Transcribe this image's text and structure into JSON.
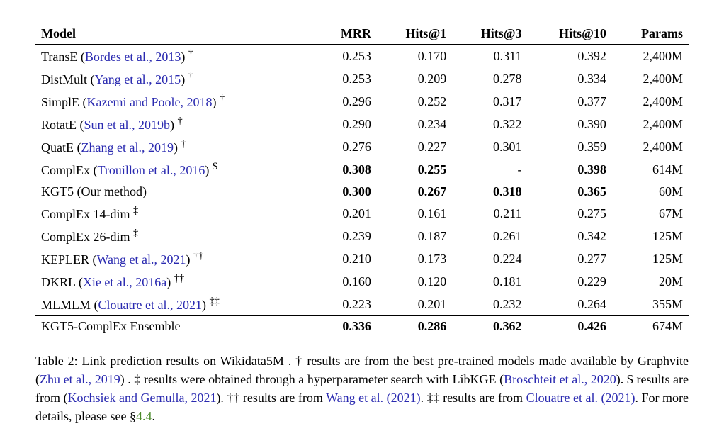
{
  "headers": [
    "Model",
    "MRR",
    "Hits@1",
    "Hits@3",
    "Hits@10",
    "Params"
  ],
  "rows": [
    {
      "name": "TransE",
      "cite": "Bordes et al., 2013",
      "mark": "†",
      "mrr": "0.253",
      "h1": "0.170",
      "h3": "0.311",
      "h10": "0.392",
      "params": "2,400M",
      "sep": "none",
      "bold": []
    },
    {
      "name": "DistMult",
      "cite": "Yang et al., 2015",
      "mark": "†",
      "mrr": "0.253",
      "h1": "0.209",
      "h3": "0.278",
      "h10": "0.334",
      "params": "2,400M",
      "sep": "none",
      "bold": []
    },
    {
      "name": "SimplE",
      "cite": "Kazemi and Poole, 2018",
      "mark": "†",
      "mrr": "0.296",
      "h1": "0.252",
      "h3": "0.317",
      "h10": "0.377",
      "params": "2,400M",
      "sep": "none",
      "bold": []
    },
    {
      "name": "RotatE",
      "cite": "Sun et al., 2019b",
      "mark": "†",
      "mrr": "0.290",
      "h1": "0.234",
      "h3": "0.322",
      "h10": "0.390",
      "params": "2,400M",
      "sep": "none",
      "bold": []
    },
    {
      "name": "QuatE",
      "cite": "Zhang et al., 2019",
      "mark": "†",
      "mrr": "0.276",
      "h1": "0.227",
      "h3": "0.301",
      "h10": "0.359",
      "params": "2,400M",
      "sep": "none",
      "bold": []
    },
    {
      "name": "ComplEx",
      "cite": "Trouillon et al., 2016",
      "mark": "$",
      "mrr": "0.308",
      "h1": "0.255",
      "h3": "-",
      "h10": "0.398",
      "params": "614M",
      "sep": "none",
      "bold": [
        "mrr",
        "h1",
        "h10"
      ]
    },
    {
      "name": "KGT5 (Our method)",
      "cite": "",
      "mark": "",
      "mrr": "0.300",
      "h1": "0.267",
      "h3": "0.318",
      "h10": "0.365",
      "params": "60M",
      "sep": "top",
      "bold": [
        "mrr",
        "h1",
        "h3",
        "h10"
      ]
    },
    {
      "name": "ComplEx 14-dim",
      "cite": "",
      "mark": "‡",
      "mrr": "0.201",
      "h1": "0.161",
      "h3": "0.211",
      "h10": "0.275",
      "params": "67M",
      "sep": "none",
      "bold": []
    },
    {
      "name": "ComplEx 26-dim",
      "cite": "",
      "mark": "‡",
      "mrr": "0.239",
      "h1": "0.187",
      "h3": "0.261",
      "h10": "0.342",
      "params": "125M",
      "sep": "none",
      "bold": []
    },
    {
      "name": "KEPLER",
      "cite": "Wang et al., 2021",
      "mark": "††",
      "mrr": "0.210",
      "h1": "0.173",
      "h3": "0.224",
      "h10": "0.277",
      "params": "125M",
      "sep": "none",
      "bold": []
    },
    {
      "name": "DKRL",
      "cite": "Xie et al., 2016a",
      "mark": "††",
      "mrr": "0.160",
      "h1": "0.120",
      "h3": "0.181",
      "h10": "0.229",
      "params": "20M",
      "sep": "none",
      "bold": []
    },
    {
      "name": "MLMLM",
      "cite": "Clouatre et al., 2021",
      "mark": "‡‡",
      "mrr": "0.223",
      "h1": "0.201",
      "h3": "0.232",
      "h10": "0.264",
      "params": "355M",
      "sep": "none",
      "bold": []
    },
    {
      "name": "KGT5-ComplEx Ensemble",
      "cite": "",
      "mark": "",
      "mrr": "0.336",
      "h1": "0.286",
      "h3": "0.362",
      "h10": "0.426",
      "params": "674M",
      "sep": "both",
      "bold": [
        "mrr",
        "h1",
        "h3",
        "h10"
      ]
    }
  ],
  "caption": {
    "label": "Table 2:",
    "t0": " Link prediction results on Wikidata5M . † results are from the best pre-trained models made available by Graphvite (",
    "c1": "Zhu et al., 2019",
    "t1": ") . ‡ results were obtained through a hyperparameter search with LibKGE (",
    "c2": "Broschteit et al., 2020",
    "t2": "). $ results are from (",
    "c3": "Kochsiek and Gemulla, 2021",
    "t3": "). †† results are from ",
    "c4": "Wang et al. (2021)",
    "t4": ". ‡‡ results are from ",
    "c5": "Clouatre et al. (2021)",
    "t5": ". For more details, please see §",
    "sect": "4.4",
    "t6": "."
  }
}
